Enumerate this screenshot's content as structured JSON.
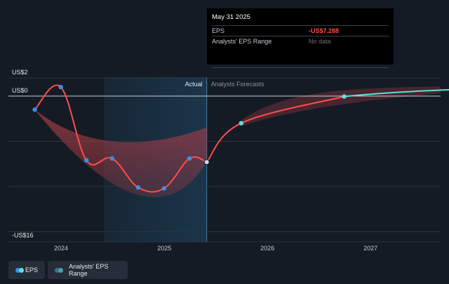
{
  "tooltip": {
    "date": "May 31 2025",
    "rows": [
      {
        "label": "EPS",
        "value": "-US$7.288"
      },
      {
        "label": "Analysts' EPS Range",
        "value": "No data"
      }
    ]
  },
  "legend": {
    "eps_label": "EPS",
    "range_label": "Analysts' EPS Range"
  },
  "colors": {
    "background": "#151b24",
    "eps_actual": "#ff4d4d",
    "eps_point": "#3a8fe8",
    "forecast_line": "#5be2d8",
    "range_fill": "#a33c46",
    "highlight_band": "#1c3a52"
  },
  "chart_data": {
    "type": "line",
    "y_tick_labels": [
      {
        "value": 2,
        "label": "US$2"
      },
      {
        "value": 0,
        "label": "US$0"
      },
      {
        "value": -16,
        "label": "-US$16"
      }
    ],
    "x_tick_labels": [
      "2024",
      "2025",
      "2026",
      "2027"
    ],
    "section_labels": {
      "actual": "Actual",
      "forecast": "Analysts Forecasts"
    },
    "ylim": [
      -16,
      2
    ],
    "grid": true,
    "series": [
      {
        "name": "EPS",
        "kind": "actual",
        "points": [
          {
            "date": "2023-09-30",
            "value": -1.5
          },
          {
            "date": "2023-12-31",
            "value": 1.0
          },
          {
            "date": "2024-03-31",
            "value": -7.1
          },
          {
            "date": "2024-06-30",
            "value": -6.9
          },
          {
            "date": "2024-09-30",
            "value": -10.1
          },
          {
            "date": "2024-12-31",
            "value": -10.2
          },
          {
            "date": "2025-03-31",
            "value": -6.9
          },
          {
            "date": "2025-05-31",
            "value": -7.3
          }
        ]
      },
      {
        "name": "EPS",
        "kind": "forecast",
        "points": [
          {
            "date": "2025-05-31",
            "value": -7.3
          },
          {
            "date": "2025-09-30",
            "value": -3.0
          },
          {
            "date": "2026-09-30",
            "value": -0.05
          },
          {
            "date": "2027-12-31",
            "value": 0.8
          }
        ]
      },
      {
        "name": "Analysts' EPS Range",
        "kind": "range",
        "upper": [
          {
            "date": "2023-09-30",
            "value": -1.5
          },
          {
            "date": "2024-05-31",
            "value": -5.5
          },
          {
            "date": "2025-05-31",
            "value": -3.5
          }
        ],
        "lower": [
          {
            "date": "2023-09-30",
            "value": -1.5
          },
          {
            "date": "2024-11-15",
            "value": -15.0
          },
          {
            "date": "2025-05-31",
            "value": -7.3
          }
        ]
      }
    ]
  }
}
